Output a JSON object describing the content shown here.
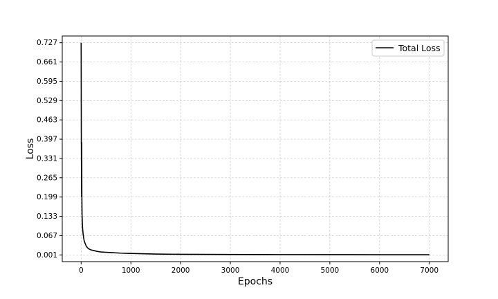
{
  "chart_data": {
    "type": "line",
    "xlabel": "Epochs",
    "ylabel": "Loss",
    "xlim": [
      -380,
      7380
    ],
    "ylim": [
      -0.022,
      0.75
    ],
    "xticks": [
      0,
      1000,
      2000,
      3000,
      4000,
      5000,
      6000,
      7000
    ],
    "yticks": [
      0.001,
      0.067,
      0.133,
      0.199,
      0.265,
      0.331,
      0.397,
      0.463,
      0.529,
      0.595,
      0.661,
      0.727
    ],
    "ytick_labels": [
      "0.001",
      "0.067",
      "0.133",
      "0.199",
      "0.265",
      "0.331",
      "0.397",
      "0.463",
      "0.529",
      "0.595",
      "0.661",
      "0.727"
    ],
    "xtick_labels": [
      "0",
      "1000",
      "2000",
      "3000",
      "4000",
      "5000",
      "6000",
      "7000"
    ],
    "grid": true,
    "legend": {
      "placement": "top-right",
      "entries": [
        "Total Loss"
      ]
    },
    "series": [
      {
        "name": "Total Loss",
        "color": "#000000",
        "x": [
          0,
          2,
          4,
          6,
          8,
          10,
          12,
          14,
          16,
          18,
          20,
          25,
          30,
          40,
          50,
          60,
          80,
          100,
          130,
          160,
          200,
          250,
          300,
          350,
          400,
          500,
          600,
          800,
          1000,
          1500,
          2000,
          3000,
          4000,
          5000,
          6000,
          7000
        ],
        "values": [
          0.727,
          0.52,
          0.38,
          0.3,
          0.25,
          0.2,
          0.385,
          0.22,
          0.17,
          0.14,
          0.13,
          0.105,
          0.09,
          0.072,
          0.06,
          0.05,
          0.04,
          0.032,
          0.025,
          0.021,
          0.018,
          0.016,
          0.014,
          0.012,
          0.011,
          0.01,
          0.009,
          0.007,
          0.006,
          0.004,
          0.003,
          0.0025,
          0.002,
          0.0018,
          0.0016,
          0.0015
        ]
      }
    ]
  }
}
